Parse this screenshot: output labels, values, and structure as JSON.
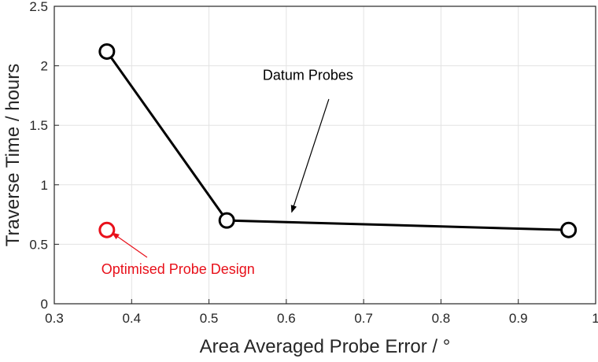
{
  "chart_data": {
    "type": "scatter",
    "xlabel": "Area Averaged Probe Error / °",
    "ylabel": "Traverse Time / hours",
    "xlim": [
      0.3,
      1.0
    ],
    "ylim": [
      0,
      2.5
    ],
    "xticks": [
      0.3,
      0.4,
      0.5,
      0.6,
      0.7,
      0.8,
      0.9,
      1.0
    ],
    "xtick_labels": [
      "0.3",
      "0.4",
      "0.5",
      "0.6",
      "0.7",
      "0.8",
      "0.9",
      "1"
    ],
    "yticks": [
      0,
      0.5,
      1.0,
      1.5,
      2.0,
      2.5
    ],
    "ytick_labels": [
      "0",
      "0.5",
      "1",
      "1.5",
      "2",
      "2.5"
    ],
    "grid": true,
    "series": [
      {
        "key": "datum",
        "color": "#000000",
        "marker": "open-circle",
        "connected": true,
        "x": [
          0.368,
          0.523,
          0.965
        ],
        "y": [
          2.12,
          0.7,
          0.62
        ]
      },
      {
        "key": "optimised",
        "color": "#e8101a",
        "marker": "open-circle",
        "connected": false,
        "x": [
          0.368
        ],
        "y": [
          0.62
        ]
      }
    ],
    "annotations": [
      {
        "text": "Datum Probes",
        "color": "#000000",
        "text_at": [
          0.628,
          1.88
        ],
        "arrow_from": [
          0.655,
          1.72
        ],
        "arrow_to": [
          0.607,
          0.77
        ]
      },
      {
        "text": "Optimised Probe Design",
        "color": "#e8101a",
        "text_at": [
          0.46,
          0.25
        ],
        "arrow_from": [
          0.42,
          0.39
        ],
        "arrow_to": [
          0.375,
          0.595
        ]
      }
    ]
  }
}
